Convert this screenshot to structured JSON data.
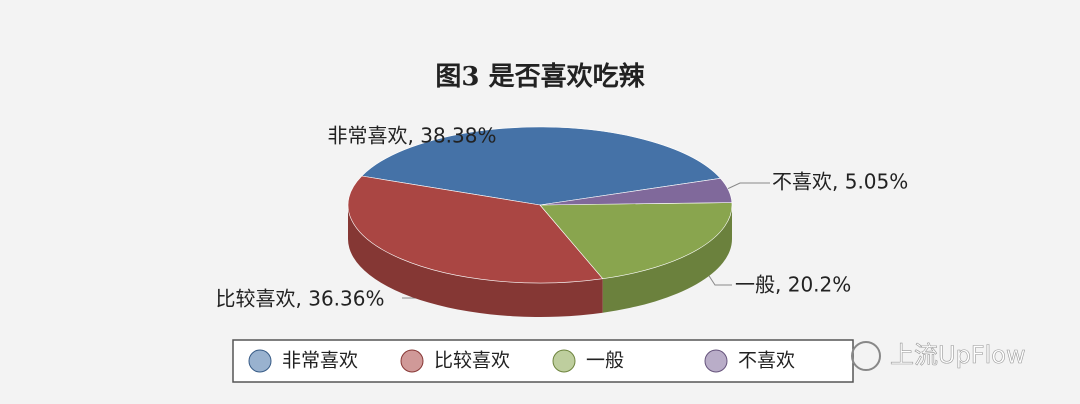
{
  "chart_data": {
    "type": "pie",
    "title": "图3 是否喜欢吃辣",
    "categories": [
      "非常喜欢",
      "比较喜欢",
      "一般",
      "不喜欢"
    ],
    "values": [
      38.38,
      36.36,
      20.2,
      5.05
    ],
    "value_labels": [
      "非常喜欢, 38.38%",
      "比较喜欢, 36.36%",
      "一般, 20.2%",
      "不喜欢, 5.05%"
    ],
    "colors": [
      "#4572a7",
      "#aa4643",
      "#89a54e",
      "#80699b"
    ],
    "legend": "bottom"
  },
  "watermark": "上流UpFlow"
}
